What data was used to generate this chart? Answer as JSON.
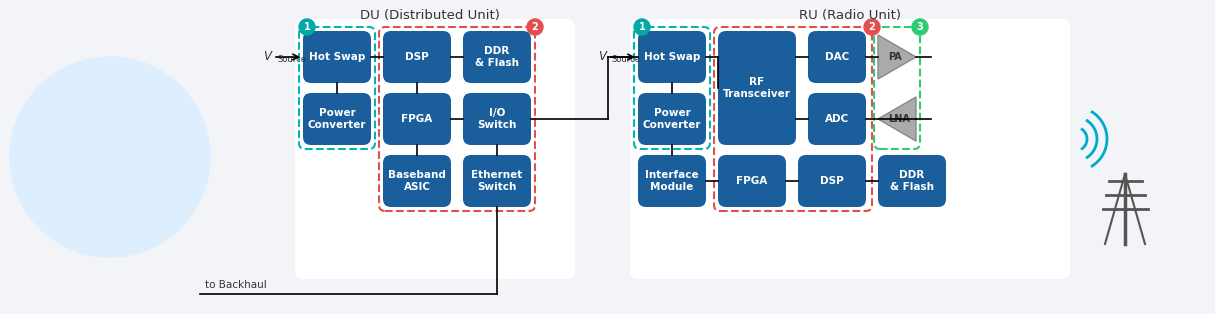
{
  "title_du": "DU (Distributed Unit)",
  "title_ru": "RU (Radio Unit)",
  "bg_color": "#f0f2f5",
  "box_color": "#1a5f9c",
  "box_color_dark": "#154d82",
  "text_color": "#ffffff",
  "teal_border": "#00b5b8",
  "red_border": "#e05050",
  "green_border": "#2ecc71",
  "badge_teal": "#00a8a8",
  "badge_red": "#e05050",
  "badge_green": "#2ecc71",
  "line_color": "#222222",
  "du_boxes": [
    {
      "label": "Hot Swap",
      "col": 0,
      "row": 0
    },
    {
      "label": "Power\nConverter",
      "col": 0,
      "row": 1
    },
    {
      "label": "DSP",
      "col": 1,
      "row": 0
    },
    {
      "label": "FPGA",
      "col": 1,
      "row": 1
    },
    {
      "label": "Baseband\nASIC",
      "col": 1,
      "row": 2
    },
    {
      "label": "DDR\n& Flash",
      "col": 2,
      "row": 0
    },
    {
      "label": "I/O\nSwitch",
      "col": 2,
      "row": 1
    },
    {
      "label": "Ethernet\nSwitch",
      "col": 2,
      "row": 2
    }
  ],
  "ru_boxes": [
    {
      "label": "Hot Swap",
      "col": 0,
      "row": 0
    },
    {
      "label": "Power\nConverter",
      "col": 0,
      "row": 1
    },
    {
      "label": "Interface\nModule",
      "col": 0,
      "row": 2
    },
    {
      "label": "RF\nTransceiver",
      "col": 1,
      "row": 0,
      "rowspan": 2
    },
    {
      "label": "FPGA",
      "col": 1,
      "row": 2
    },
    {
      "label": "DAC",
      "col": 2,
      "row": 0
    },
    {
      "label": "ADC",
      "col": 2,
      "row": 1
    },
    {
      "label": "DSP",
      "col": 2,
      "row": 2
    },
    {
      "label": "DDR\n& Flash",
      "col": 3,
      "row": 2
    },
    {
      "label": "PA",
      "col": 3,
      "row": 0,
      "shape": "triangle"
    },
    {
      "label": "LNA",
      "col": 3,
      "row": 1,
      "shape": "triangle_inv"
    }
  ]
}
